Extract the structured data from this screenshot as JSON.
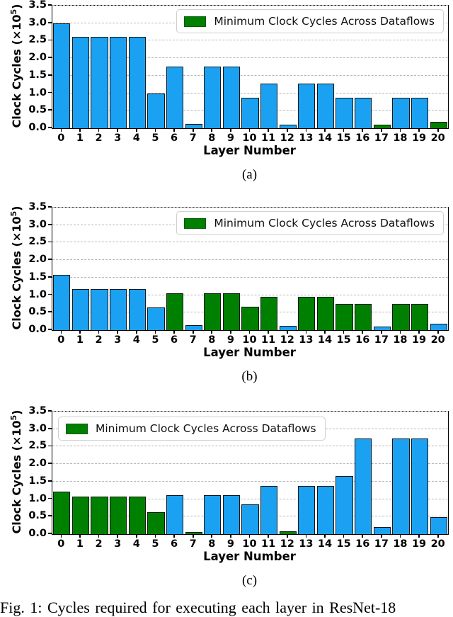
{
  "legend": {
    "label": "Minimum Clock Cycles Across Dataflows"
  },
  "ylabel": {
    "prefix": "Clock Cycles (×10",
    "sup": "5",
    "suffix": ")"
  },
  "colors": {
    "blue": "#1BA1F2",
    "green": "#008000",
    "bar_edge": "#151515",
    "grid": "#b5b5b5",
    "legend_border": "#cfcfcf",
    "legend_swatch_edge": "#0a5a0a"
  },
  "caption": "Fig. 1: Cycles required for executing each layer in ResNet-18",
  "chart_data": [
    {
      "type": "bar",
      "panel": "(a)",
      "xlabel": "Layer Number",
      "ylabel": "Clock Cycles (×10^5)",
      "ylim": [
        0,
        3.5
      ],
      "yticks": [
        "0.0",
        "0.5",
        "1.0",
        "1.5",
        "2.0",
        "2.5",
        "3.0",
        "3.5"
      ],
      "grid": "dashed-horizontal",
      "legend_position": "top-right",
      "categories": [
        "0",
        "1",
        "2",
        "3",
        "4",
        "5",
        "6",
        "7",
        "8",
        "9",
        "10",
        "11",
        "12",
        "13",
        "14",
        "15",
        "16",
        "17",
        "18",
        "19",
        "20"
      ],
      "values": [
        3.0,
        2.61,
        2.61,
        2.61,
        2.61,
        1.0,
        1.76,
        0.12,
        1.76,
        1.76,
        0.88,
        1.27,
        0.11,
        1.27,
        1.27,
        0.88,
        0.88,
        0.1,
        0.88,
        0.88,
        0.18
      ],
      "bar_colors": [
        "blue",
        "blue",
        "blue",
        "blue",
        "blue",
        "blue",
        "blue",
        "blue",
        "blue",
        "blue",
        "blue",
        "blue",
        "blue",
        "blue",
        "blue",
        "blue",
        "blue",
        "green",
        "blue",
        "blue",
        "green"
      ]
    },
    {
      "type": "bar",
      "panel": "(b)",
      "xlabel": "Layer Number",
      "ylabel": "Clock Cycles (×10^5)",
      "ylim": [
        0,
        3.5
      ],
      "yticks": [
        "0.0",
        "0.5",
        "1.0",
        "1.5",
        "2.0",
        "2.5",
        "3.0",
        "3.5"
      ],
      "grid": "dashed-horizontal",
      "legend_position": "top-right",
      "categories": [
        "0",
        "1",
        "2",
        "3",
        "4",
        "5",
        "6",
        "7",
        "8",
        "9",
        "10",
        "11",
        "12",
        "13",
        "14",
        "15",
        "16",
        "17",
        "18",
        "19",
        "20"
      ],
      "values": [
        1.58,
        1.17,
        1.17,
        1.17,
        1.18,
        0.64,
        1.06,
        0.14,
        1.06,
        1.06,
        0.67,
        0.95,
        0.12,
        0.95,
        0.95,
        0.75,
        0.74,
        0.11,
        0.74,
        0.75,
        0.19
      ],
      "bar_colors": [
        "blue",
        "blue",
        "blue",
        "blue",
        "blue",
        "blue",
        "green",
        "blue",
        "green",
        "green",
        "green",
        "green",
        "blue",
        "green",
        "green",
        "green",
        "green",
        "blue",
        "green",
        "green",
        "blue"
      ]
    },
    {
      "type": "bar",
      "panel": "(c)",
      "xlabel": "Layer Number",
      "ylabel": "Clock Cycles (×10^5)",
      "ylim": [
        0,
        3.5
      ],
      "yticks": [
        "0.0",
        "0.5",
        "1.0",
        "1.5",
        "2.0",
        "2.5",
        "3.0",
        "3.5"
      ],
      "grid": "dashed-horizontal",
      "legend_position": "top-left",
      "categories": [
        "0",
        "1",
        "2",
        "3",
        "4",
        "5",
        "6",
        "7",
        "8",
        "9",
        "10",
        "11",
        "12",
        "13",
        "14",
        "15",
        "16",
        "17",
        "18",
        "19",
        "20"
      ],
      "values": [
        1.22,
        1.07,
        1.07,
        1.07,
        1.08,
        0.63,
        1.11,
        0.07,
        1.11,
        1.11,
        0.84,
        1.38,
        0.09,
        1.38,
        1.37,
        1.65,
        2.74,
        0.2,
        2.74,
        2.74,
        0.49
      ],
      "bar_colors": [
        "green",
        "green",
        "green",
        "green",
        "green",
        "green",
        "blue",
        "green",
        "blue",
        "blue",
        "blue",
        "blue",
        "green",
        "blue",
        "blue",
        "blue",
        "blue",
        "blue",
        "blue",
        "blue",
        "blue"
      ]
    }
  ]
}
